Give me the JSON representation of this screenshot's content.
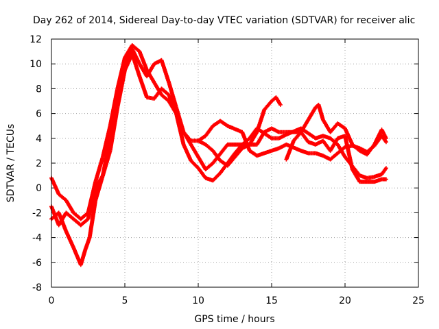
{
  "chart_data": {
    "type": "scatter",
    "title": "Day 262 of 2014, Sidereal Day-to-day VTEC variation (SDTVAR) for receiver alic",
    "xlabel": "GPS time / hours",
    "ylabel": "SDTVAR / TECUs",
    "xlim": [
      0,
      25
    ],
    "ylim": [
      -8,
      12
    ],
    "xticks": [
      "0",
      "5",
      "10",
      "15",
      "20",
      "25"
    ],
    "yticks": [
      "-8",
      "-6",
      "-4",
      "-2",
      "0",
      "2",
      "4",
      "6",
      "8",
      "10",
      "12"
    ],
    "grid": true,
    "legend": "none",
    "marker": "+",
    "series": [
      {
        "name": "track-1",
        "color": "#ff0000",
        "x": [
          0,
          0.5,
          1,
          1.5,
          2,
          2.5,
          3,
          3.5,
          4,
          4.5,
          5,
          5.5,
          6,
          6.5,
          7,
          7.5,
          8,
          8.5,
          9,
          9.5,
          10,
          10.5,
          11,
          11.5,
          12,
          13,
          13.5,
          14,
          15,
          15.5,
          16,
          17,
          17.5,
          18,
          18.5,
          19,
          19.5,
          20,
          20.5,
          21,
          21.5,
          22,
          22.5,
          22.8
        ],
        "y": [
          0.8,
          -0.5,
          -1.0,
          -2.0,
          -2.5,
          -2.0,
          0.5,
          2.5,
          5.0,
          8.0,
          10.5,
          11.5,
          11.0,
          9.5,
          8.5,
          7.5,
          7.0,
          6.0,
          4.5,
          3.8,
          3.8,
          4.2,
          5.0,
          5.4,
          5.0,
          4.5,
          3.0,
          2.6,
          3.0,
          3.2,
          3.5,
          3.0,
          2.8,
          2.8,
          2.6,
          2.3,
          2.8,
          3.3,
          3.4,
          3.2,
          2.9,
          3.4,
          4.2,
          3.7
        ]
      },
      {
        "name": "track-2",
        "color": "#ff0000",
        "x": [
          0,
          0.5,
          1,
          1.5,
          2,
          2.5,
          3,
          3.5,
          4,
          4.5,
          5,
          5.5,
          6,
          6.5,
          7,
          7.5,
          8,
          8.5,
          9,
          9.5,
          10,
          10.5,
          11,
          12,
          13,
          13.5,
          14,
          15,
          15.5,
          16,
          17,
          18,
          18.5,
          19,
          19.5,
          20,
          21,
          21.5,
          22,
          22.5,
          22.8
        ],
        "y": [
          -1.5,
          -3.0,
          -2.0,
          -2.5,
          -3.0,
          -2.5,
          0.0,
          1.0,
          4.0,
          7.0,
          10.0,
          11.2,
          10.0,
          9.0,
          10.0,
          10.3,
          8.5,
          6.5,
          4.5,
          3.5,
          2.5,
          1.5,
          2.0,
          3.5,
          3.5,
          4.0,
          4.8,
          4.0,
          4.0,
          4.3,
          4.8,
          4.0,
          4.2,
          4.0,
          3.5,
          2.5,
          1.0,
          0.8,
          0.9,
          1.1,
          1.6
        ]
      },
      {
        "name": "track-3",
        "color": "#ff0000",
        "x": [
          0,
          0.5,
          1,
          1.5,
          2,
          2.3,
          2.6,
          3,
          3.5,
          4,
          4.5,
          5,
          5.5,
          6,
          6.5,
          7,
          7.5,
          8,
          8.5,
          9,
          9.5,
          10,
          10.5,
          11,
          11.5,
          12,
          12.5,
          13,
          14,
          14.5,
          15,
          15.5,
          16,
          17,
          17.5,
          18,
          18.5,
          19,
          19.5,
          20,
          20.5,
          21,
          22,
          22.5,
          22.8
        ],
        "y": [
          -2.5,
          -2.0,
          -3.5,
          -4.8,
          -6.2,
          -5.0,
          -4.0,
          -1.0,
          1.0,
          3.0,
          6.5,
          9.5,
          10.8,
          9.0,
          7.3,
          7.2,
          8.0,
          7.5,
          6.0,
          3.5,
          2.2,
          1.6,
          0.8,
          0.6,
          1.2,
          2.0,
          2.8,
          3.5,
          3.5,
          4.5,
          4.8,
          4.5,
          4.5,
          4.5,
          3.7,
          3.5,
          3.8,
          3.0,
          4.0,
          4.2,
          1.5,
          0.5,
          0.5,
          0.7,
          0.7
        ]
      },
      {
        "name": "track-4",
        "color": "#ff0000",
        "x": [
          10,
          10.5,
          11,
          11.5,
          12,
          12.5,
          13,
          13.5,
          14,
          14.5,
          15,
          15.3,
          15.6
        ],
        "y": [
          3.8,
          3.5,
          3.0,
          2.2,
          1.8,
          2.5,
          3.2,
          3.5,
          4.5,
          6.3,
          7.0,
          7.3,
          6.7
        ]
      },
      {
        "name": "track-5",
        "color": "#ff0000",
        "x": [
          16,
          16.5,
          17,
          17.5,
          18,
          18.2,
          18.5,
          19,
          19.5,
          20,
          20.5,
          21,
          21.5,
          22,
          22.5,
          22.8
        ],
        "y": [
          2.3,
          3.8,
          4.5,
          5.5,
          6.5,
          6.7,
          5.5,
          4.5,
          5.2,
          4.8,
          3.5,
          3.0,
          2.7,
          3.5,
          4.7,
          4.0
        ]
      }
    ]
  }
}
